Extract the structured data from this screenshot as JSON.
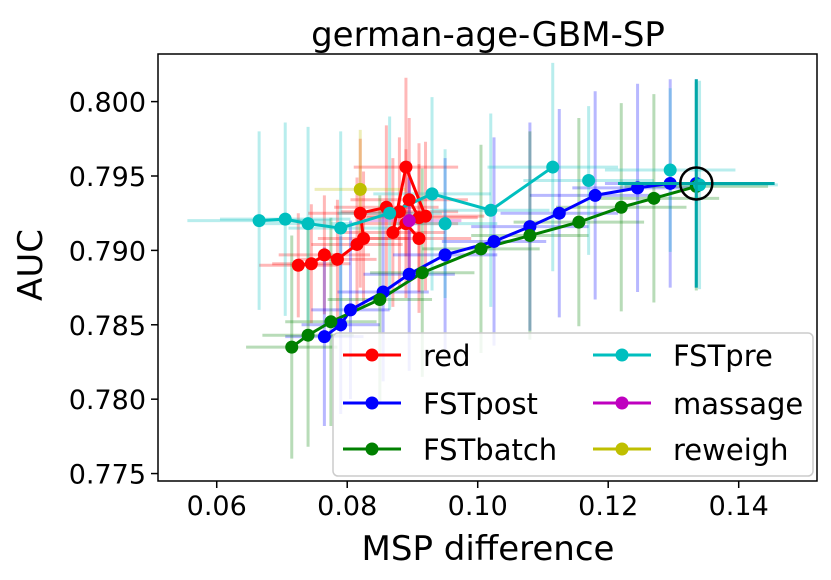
{
  "chart_data": {
    "type": "scatter",
    "title": "german-age-GBM-SP",
    "xlabel": "MSP difference",
    "ylabel": "AUC",
    "xlim": [
      0.051,
      0.152
    ],
    "ylim": [
      0.7745,
      0.8032
    ],
    "xticks": [
      0.06,
      0.08,
      0.1,
      0.12,
      0.14
    ],
    "xtick_labels": [
      "0.06",
      "0.08",
      "0.10",
      "0.12",
      "0.14"
    ],
    "yticks": [
      0.775,
      0.78,
      0.785,
      0.79,
      0.795,
      0.8
    ],
    "ytick_labels": [
      "0.775",
      "0.780",
      "0.785",
      "0.790",
      "0.795",
      "0.800"
    ],
    "grid": false,
    "legend_position": "lower-right",
    "series": [
      {
        "name": "red",
        "color": "#ff0000",
        "connected": true,
        "x": [
          0.0725,
          0.0745,
          0.0765,
          0.0785,
          0.0815,
          0.0825,
          0.082,
          0.086,
          0.088,
          0.0895,
          0.091,
          0.092,
          0.089,
          0.087,
          0.089,
          0.091
        ],
        "y": [
          0.789,
          0.7891,
          0.7897,
          0.7894,
          0.7904,
          0.7908,
          0.7925,
          0.7929,
          0.7926,
          0.7934,
          0.7922,
          0.7923,
          0.7956,
          0.7912,
          0.7918,
          0.7908
        ],
        "xerr": [
          0.006,
          0.006,
          0.007,
          0.006,
          0.007,
          0.007,
          0.008,
          0.008,
          0.009,
          0.009,
          0.009,
          0.009,
          0.008,
          0.008,
          0.008,
          0.008
        ],
        "yerr": [
          0.0035,
          0.004,
          0.004,
          0.004,
          0.0045,
          0.0045,
          0.005,
          0.0055,
          0.005,
          0.0055,
          0.005,
          0.005,
          0.006,
          0.005,
          0.005,
          0.005
        ]
      },
      {
        "name": "FSTpost",
        "color": "#0000ff",
        "connected": true,
        "x": [
          0.0765,
          0.079,
          0.0805,
          0.0855,
          0.0895,
          0.095,
          0.1025,
          0.108,
          0.1125,
          0.118,
          0.1245,
          0.1295,
          0.1335
        ],
        "y": [
          0.7842,
          0.785,
          0.786,
          0.7872,
          0.7884,
          0.7897,
          0.7906,
          0.7916,
          0.7925,
          0.7937,
          0.7942,
          0.7945,
          0.7945
        ],
        "xerr": [
          0.006,
          0.006,
          0.006,
          0.007,
          0.007,
          0.008,
          0.008,
          0.009,
          0.009,
          0.01,
          0.01,
          0.01,
          0.012
        ],
        "yerr": [
          0.006,
          0.006,
          0.006,
          0.006,
          0.0065,
          0.0065,
          0.007,
          0.007,
          0.007,
          0.007,
          0.007,
          0.007,
          0.007
        ]
      },
      {
        "name": "FSTbatch",
        "color": "#008000",
        "connected": true,
        "x": [
          0.0715,
          0.074,
          0.0775,
          0.085,
          0.0915,
          0.1005,
          0.108,
          0.1155,
          0.122,
          0.127,
          0.1335
        ],
        "y": [
          0.7835,
          0.7843,
          0.7852,
          0.7867,
          0.7885,
          0.7901,
          0.791,
          0.7919,
          0.7929,
          0.7935,
          0.7943
        ],
        "xerr": [
          0.007,
          0.007,
          0.007,
          0.008,
          0.008,
          0.009,
          0.009,
          0.01,
          0.01,
          0.01,
          0.011
        ],
        "yerr": [
          0.0075,
          0.0075,
          0.007,
          0.007,
          0.007,
          0.007,
          0.007,
          0.007,
          0.007,
          0.007,
          0.007
        ]
      },
      {
        "name": "FSTpre",
        "color": "#00bfbf",
        "connected": true,
        "x": [
          0.0665,
          0.0705,
          0.074,
          0.079,
          0.0865,
          0.093,
          0.102,
          0.1115
        ],
        "y": [
          0.792,
          0.7921,
          0.7918,
          0.7915,
          0.7925,
          0.7938,
          0.7927,
          0.7956
        ],
        "xerr": [
          0.011,
          0.01,
          0.008,
          0.008,
          0.008,
          0.009,
          0.009,
          0.01
        ],
        "yerr": [
          0.006,
          0.0065,
          0.0065,
          0.0065,
          0.0065,
          0.0065,
          0.0065,
          0.007
        ]
      },
      {
        "name": "FSTpre",
        "color": "#00bfbf",
        "connected": false,
        "show_in_legend": false,
        "x": [
          0.095,
          0.117,
          0.1295,
          0.134
        ],
        "y": [
          0.7918,
          0.7947,
          0.7954,
          0.7944
        ],
        "xerr": [
          0.008,
          0.01,
          0.01,
          0.012
        ],
        "yerr": [
          0.005,
          0.005,
          0.0055,
          0.007
        ]
      },
      {
        "name": "massage",
        "color": "#bf00bf",
        "connected": false,
        "x": [
          0.0895
        ],
        "y": [
          0.792
        ],
        "xerr": [
          0.008
        ],
        "yerr": [
          0.004
        ]
      },
      {
        "name": "reweigh",
        "color": "#bfbf00",
        "connected": false,
        "x": [
          0.082
        ],
        "y": [
          0.7941
        ],
        "xerr": [
          0.007
        ],
        "yerr": [
          0.004
        ]
      }
    ],
    "reference_point": {
      "x": 0.1335,
      "y": 0.7945,
      "marker": "black-circle",
      "xerr": [
        0.012
      ],
      "yerr": [
        0.007
      ],
      "errcolor": "#00a8a8"
    }
  }
}
